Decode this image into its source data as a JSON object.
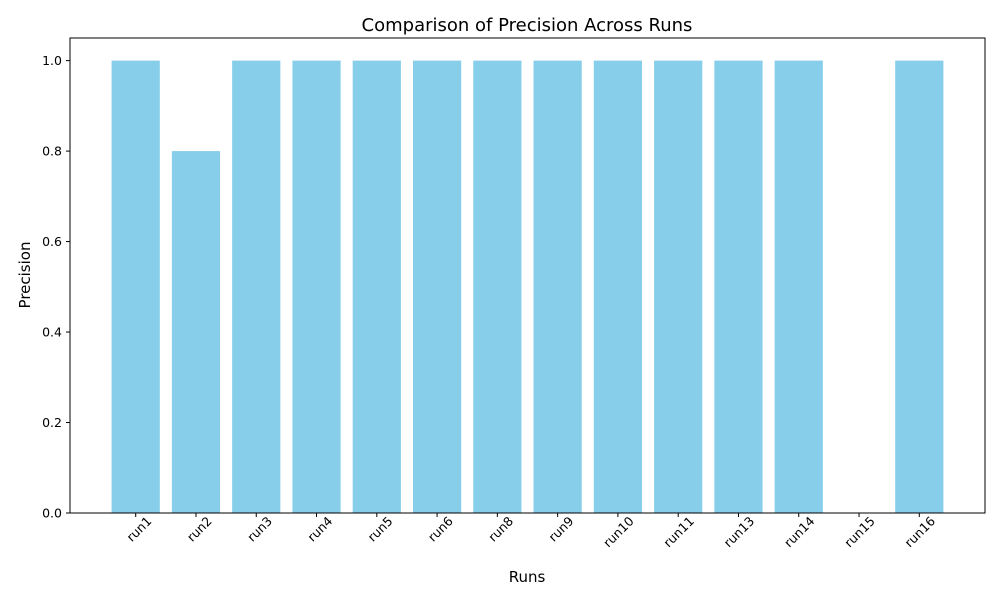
{
  "chart_data": {
    "type": "bar",
    "title": "Comparison of Precision Across Runs",
    "xlabel": "Runs",
    "ylabel": "Precision",
    "categories": [
      "run1",
      "run2",
      "run3",
      "run4",
      "run5",
      "run6",
      "run8",
      "run9",
      "run10",
      "run11",
      "run13",
      "run14",
      "run15",
      "run16"
    ],
    "values": [
      1.0,
      0.8,
      1.0,
      1.0,
      1.0,
      1.0,
      1.0,
      1.0,
      1.0,
      1.0,
      1.0,
      1.0,
      0.0,
      1.0
    ],
    "ylim": [
      0,
      1.05
    ],
    "yticks": [
      0.0,
      0.2,
      0.4,
      0.6,
      0.8,
      1.0
    ],
    "ytick_labels": [
      "0.0",
      "0.2",
      "0.4",
      "0.6",
      "0.8",
      "1.0"
    ],
    "bar_color": "#87ceeb",
    "grid": false,
    "legend": "none"
  }
}
